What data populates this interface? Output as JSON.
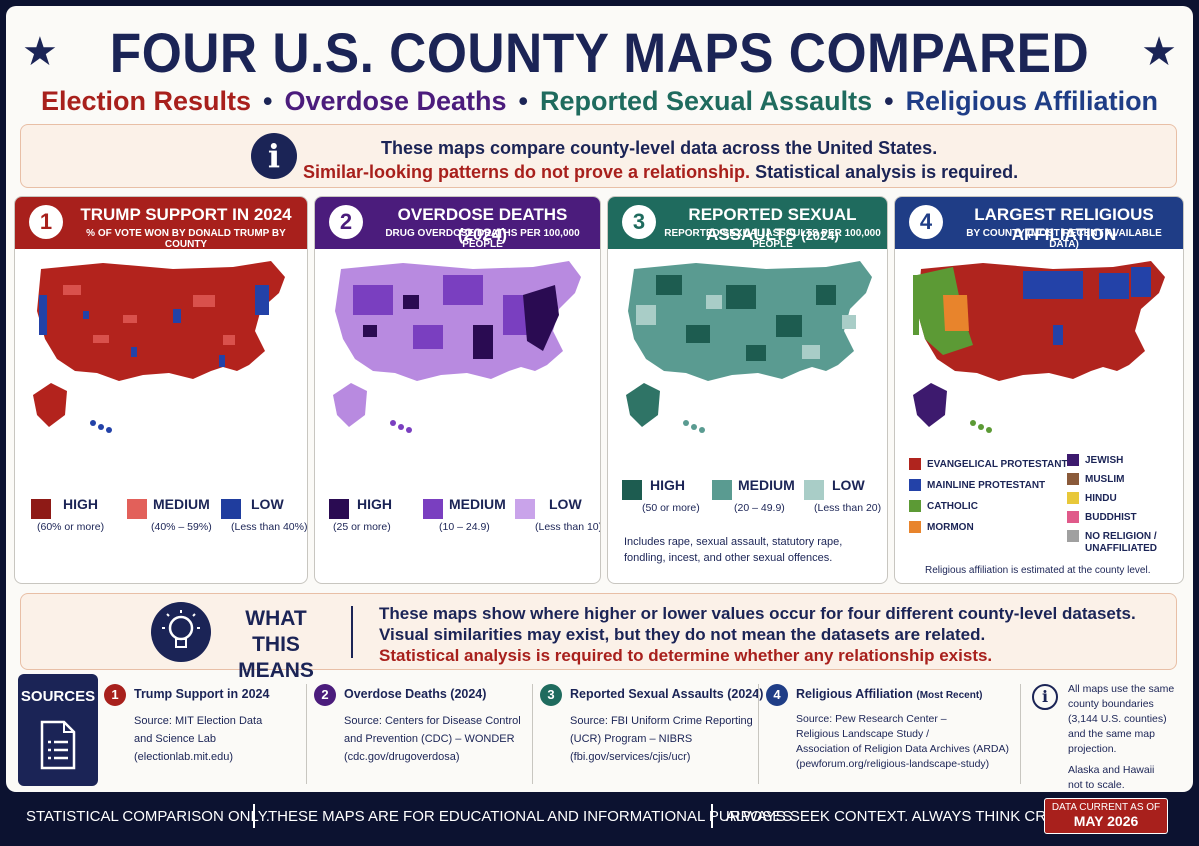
{
  "header": {
    "title": "FOUR U.S. COUNTY MAPS COMPARED",
    "subtitle": [
      "Election Results",
      "Overdose Deaths",
      "Reported Sexual Assaults",
      "Religious Affiliation"
    ],
    "bullet": "•"
  },
  "notice": {
    "line1": "These maps compare county-level data across the United States.",
    "line2_red": "Similar-looking patterns do not prove a relationship.",
    "line2_rest": " Statistical analysis is required."
  },
  "panels": [
    {
      "num": "1",
      "title": "TRUMP SUPPORT IN 2024",
      "title_suffix": "",
      "subtitle": "% OF VOTE WON BY DONALD TRUMP BY COUNTY",
      "head_color": "#a8201c",
      "legend": [
        {
          "label": "HIGH",
          "sub": "(60% or more)",
          "color": "#8e1a16"
        },
        {
          "label": "MEDIUM",
          "sub": "(40% – 59%)",
          "color": "#e2605a"
        },
        {
          "label": "LOW",
          "sub": "(Less than 40%)",
          "color": "#1f3d9e"
        }
      ]
    },
    {
      "num": "2",
      "title": "OVERDOSE DEATHS (2024)",
      "title_suffix": "",
      "subtitle": "DRUG OVERDOSE DEATHS PER 100,000 PEOPLE",
      "head_color": "#4b1c7c",
      "legend": [
        {
          "label": "HIGH",
          "sub": "(25 or more)",
          "color": "#2a0b52"
        },
        {
          "label": "MEDIUM",
          "sub": "(10 – 24.9)",
          "color": "#7a3fc0"
        },
        {
          "label": "LOW",
          "sub": "(Less than 10)",
          "color": "#c9a3ea"
        }
      ]
    },
    {
      "num": "3",
      "title": "REPORTED SEXUAL ASSAULTS",
      "title_suffix": "(2024)",
      "subtitle": "REPORTED SEXUAL ASSAULTS PER 100,000 PEOPLE",
      "head_color": "#1f6b5e",
      "legend": [
        {
          "label": "HIGH",
          "sub": "(50 or more)",
          "color": "#1d5c50"
        },
        {
          "label": "MEDIUM",
          "sub": "(20 – 49.9)",
          "color": "#5a9b91"
        },
        {
          "label": "LOW",
          "sub": "(Less than 20)",
          "color": "#a9cdc7"
        }
      ],
      "note": [
        "Includes rape, sexual assault, statutory rape,",
        "fondling, incest, and other sexual offences."
      ]
    },
    {
      "num": "4",
      "title": "LARGEST RELIGIOUS AFFILIATION",
      "title_suffix": "",
      "subtitle": "BY COUNTY (MOST RECENT AVAILABLE DATA)",
      "head_color": "#1f3d86",
      "legend": [
        {
          "label": "EVANGELICAL PROTESTANT",
          "color": "#b0241e"
        },
        {
          "label": "MAINLINE PROTESTANT",
          "color": "#2342a8"
        },
        {
          "label": "CATHOLIC",
          "color": "#5c9a35"
        },
        {
          "label": "MORMON",
          "color": "#e8842c"
        },
        {
          "label": "JEWISH",
          "color": "#3d1a6e"
        },
        {
          "label": "MUSLIM",
          "color": "#8a5a3a"
        },
        {
          "label": "HINDU",
          "color": "#e8c83a"
        },
        {
          "label": "BUDDHIST",
          "color": "#e05a8a"
        },
        {
          "label": "NO RELIGION /",
          "color": "#a0a0a0"
        },
        {
          "label": "UNAFFILIATED",
          "color": ""
        }
      ],
      "note": [
        "Religious affiliation is estimated at the county level."
      ]
    }
  ],
  "meaning": {
    "title": [
      "WHAT",
      "THIS MEANS"
    ],
    "line1": "These maps show where higher or lower values occur for four different county-level datasets.",
    "line2": "Visual similarities may exist, but they do not mean the datasets are related.",
    "line3": "Statistical analysis is required to determine whether any relationship exists."
  },
  "sources": {
    "title": "SOURCES",
    "items": [
      {
        "num": "1",
        "title": "Trump Support in 2024",
        "title_small": "",
        "color": "#a8201c",
        "lines": [
          "Source: MIT Election Data",
          "and Science Lab",
          "(electionlab.mit.edu)"
        ]
      },
      {
        "num": "2",
        "title": "Overdose Deaths (2024)",
        "title_small": "",
        "color": "#4b1c7c",
        "lines": [
          "Source: Centers for Disease Control",
          "and Prevention (CDC) – WONDER",
          "(cdc.gov/drugoverdosa)"
        ]
      },
      {
        "num": "3",
        "title": "Reported Sexual Assaults (2024)",
        "title_small": "",
        "color": "#1f6b5e",
        "lines": [
          "Source: FBI Uniform Crime Reporting",
          "(UCR) Program – NIBRS",
          "(fbi.gov/services/cjis/ucr)"
        ]
      },
      {
        "num": "4",
        "title": "Religious Affiliation",
        "title_small": "(Most Recent)",
        "color": "#1f3d86",
        "lines": [
          "Source: Pew Research Center –",
          "Religious Landscape Study /",
          "Association of Religion Data Archives (ARDA)",
          "(pewforum.org/religious-landscape-study)"
        ]
      }
    ],
    "info": [
      "All maps use the same",
      "county boundaries",
      "(3,144 U.S. counties)",
      "and the same map",
      "projection.",
      "",
      "Alaska and Hawaii",
      "not to scale."
    ]
  },
  "footer": {
    "part1": "STATISTICAL COMPARISON ONLY.",
    "part2": "THESE MAPS ARE FOR EDUCATIONAL AND INFORMATIONAL PURPOSES.",
    "part3": "ALWAYS SEEK CONTEXT. ALWAYS THINK CRITICALLY.",
    "date_label": "DATA CURRENT AS OF",
    "date_value": "MAY 2026"
  },
  "colors": {
    "navy": "#1b2456",
    "red": "#a8201c",
    "purple": "#4b1c7c",
    "teal": "#1f6b5e",
    "blue": "#1f3d86"
  }
}
